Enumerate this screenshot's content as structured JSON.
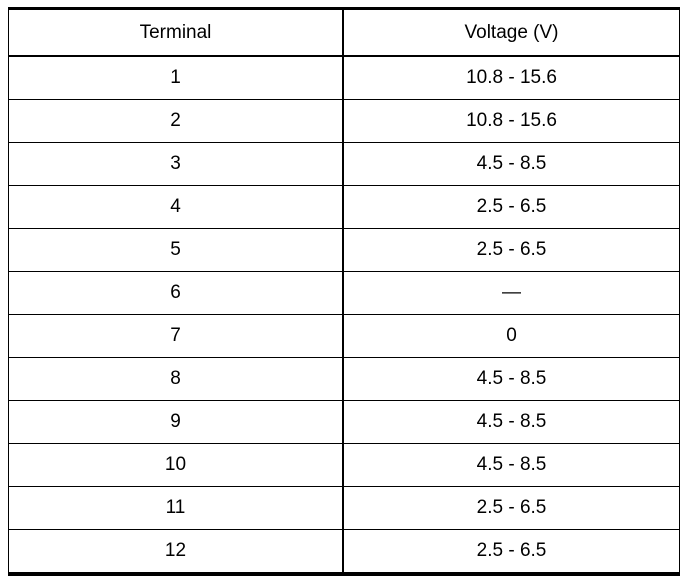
{
  "table": {
    "header": [
      "Terminal",
      "Voltage (V)"
    ],
    "rows": [
      [
        "1",
        "10.8 - 15.6"
      ],
      [
        "2",
        "10.8 - 15.6"
      ],
      [
        "3",
        "4.5 - 8.5"
      ],
      [
        "4",
        "2.5 - 6.5"
      ],
      [
        "5",
        "2.5 - 6.5"
      ],
      [
        "6",
        "—"
      ],
      [
        "7",
        "0"
      ],
      [
        "8",
        "4.5 - 8.5"
      ],
      [
        "9",
        "4.5 - 8.5"
      ],
      [
        "10",
        "4.5 - 8.5"
      ],
      [
        "11",
        "2.5 - 6.5"
      ],
      [
        "12",
        "2.5 - 6.5"
      ]
    ]
  }
}
